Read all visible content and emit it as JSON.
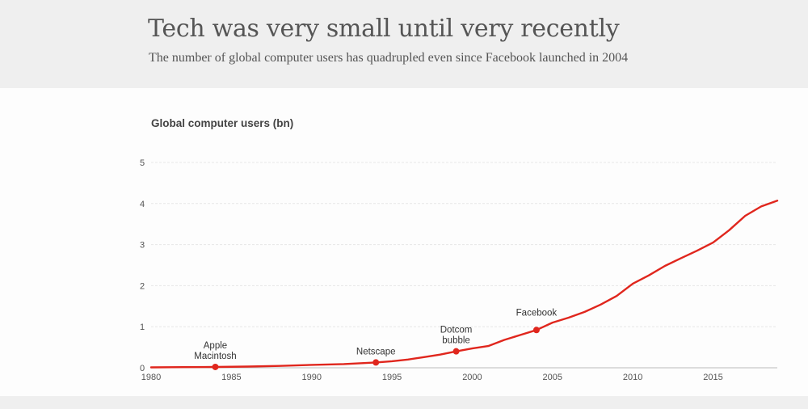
{
  "header": {
    "title": "Tech was very small until very recently",
    "subtitle": "The number of global computer users has quadrupled even since Facebook launched in 2004"
  },
  "chart_data": {
    "type": "line",
    "title": "Tech was very small until very recently",
    "subtitle": "The number of global computer users has quadrupled even since Facebook launched in 2004",
    "ylabel": "Global computer users (bn)",
    "xlabel": "",
    "xlim": [
      1980,
      2019
    ],
    "ylim": [
      0,
      5
    ],
    "grid": true,
    "line_color": "#e0261d",
    "x_ticks": [
      "1980",
      "1985",
      "1990",
      "1995",
      "2000",
      "2005",
      "2010",
      "2015"
    ],
    "y_ticks": [
      "0",
      "1",
      "2",
      "3",
      "4",
      "5"
    ],
    "series": [
      {
        "name": "Global computer users (bn)",
        "x": [
          1980,
          1982,
          1984,
          1986,
          1988,
          1990,
          1992,
          1994,
          1995,
          1996,
          1997,
          1998,
          1999,
          2000,
          2001,
          2002,
          2003,
          2004,
          2005,
          2006,
          2007,
          2008,
          2009,
          2010,
          2011,
          2012,
          2013,
          2014,
          2015,
          2016,
          2017,
          2018,
          2019
        ],
        "values": [
          0.01,
          0.015,
          0.02,
          0.03,
          0.045,
          0.07,
          0.09,
          0.13,
          0.16,
          0.2,
          0.26,
          0.32,
          0.4,
          0.47,
          0.53,
          0.68,
          0.8,
          0.92,
          1.1,
          1.22,
          1.36,
          1.54,
          1.75,
          2.05,
          2.25,
          2.48,
          2.67,
          2.85,
          3.05,
          3.35,
          3.7,
          3.93,
          4.07
        ]
      }
    ],
    "annotations": [
      {
        "x": 1984,
        "y": 0.02,
        "lines": [
          "Apple",
          "Macintosh"
        ]
      },
      {
        "x": 1994,
        "y": 0.13,
        "lines": [
          "Netscape"
        ]
      },
      {
        "x": 1999,
        "y": 0.4,
        "lines": [
          "Dotcom",
          "bubble"
        ]
      },
      {
        "x": 2004,
        "y": 0.92,
        "lines": [
          "Facebook"
        ]
      }
    ]
  }
}
